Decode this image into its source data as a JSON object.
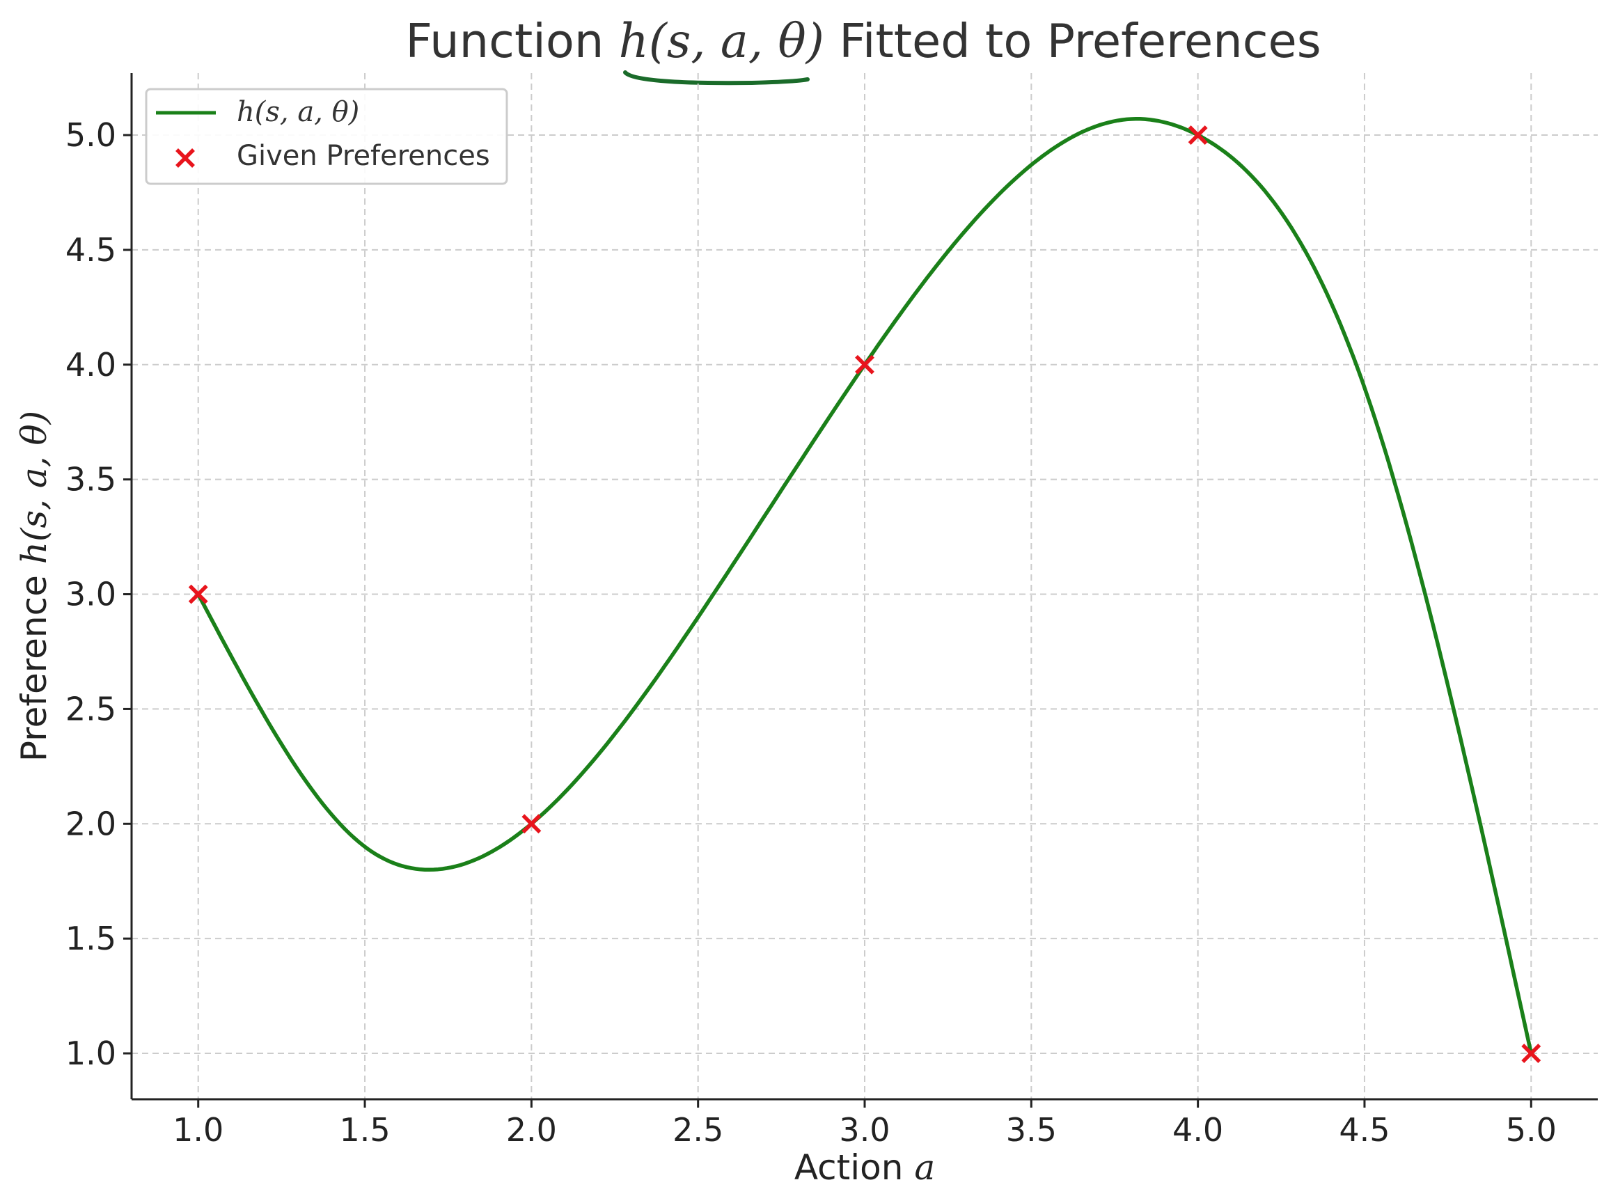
{
  "chart_data": {
    "type": "line",
    "title": {
      "prefix": "Function ",
      "math": "h(s, a, θ)",
      "suffix": " Fitted to Preferences"
    },
    "xlabel": {
      "text": "Action ",
      "math": "a"
    },
    "ylabel": {
      "text": "Preference ",
      "math": "h(s, a, θ)"
    },
    "xlim": [
      0.8,
      5.2
    ],
    "ylim": [
      0.8,
      5.27
    ],
    "xticks": [
      1.0,
      1.5,
      2.0,
      2.5,
      3.0,
      3.5,
      4.0,
      4.5,
      5.0
    ],
    "xtick_labels": [
      "1.0",
      "1.5",
      "2.0",
      "2.5",
      "3.0",
      "3.5",
      "4.0",
      "4.5",
      "5.0"
    ],
    "yticks": [
      1.0,
      1.5,
      2.0,
      2.5,
      3.0,
      3.5,
      4.0,
      4.5,
      5.0
    ],
    "ytick_labels": [
      "1.0",
      "1.5",
      "2.0",
      "2.5",
      "3.0",
      "3.5",
      "4.0",
      "4.5",
      "5.0"
    ],
    "grid": true,
    "legend_position": "top-left",
    "series": [
      {
        "name": "h(s, a, θ)",
        "kind": "line",
        "color": "#1a8019",
        "x": [
          1.0,
          1.5,
          1.7,
          2.0,
          2.5,
          3.0,
          3.5,
          3.8,
          4.0,
          4.5,
          5.0
        ],
        "y": [
          3.0,
          1.9,
          1.8,
          2.0,
          2.9,
          4.0,
          4.87,
          5.07,
          5.0,
          3.9,
          1.0
        ]
      },
      {
        "name": "Given Preferences",
        "kind": "scatter",
        "marker": "x",
        "color": "#e8141c",
        "x": [
          1.0,
          2.0,
          3.0,
          4.0,
          5.0
        ],
        "y": [
          3.0,
          2.0,
          4.0,
          5.0,
          1.0
        ]
      }
    ],
    "annotation": {
      "description": "hand-drawn underline beneath title math",
      "color": "#1a6b2a"
    }
  }
}
